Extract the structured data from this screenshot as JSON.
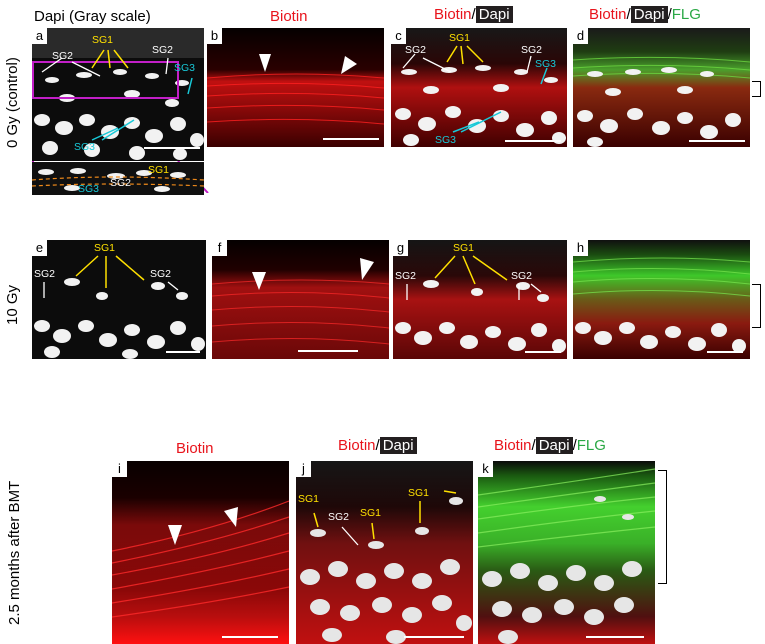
{
  "headers": {
    "dapi_gray": "Dapi (Gray scale)",
    "biotin": "Biotin",
    "slash": "/",
    "dapi": "Dapi",
    "flg": "FLG"
  },
  "rows": {
    "r1": "0 Gy (control)",
    "r2": "10 Gy",
    "r3": "2.5 months after BMT"
  },
  "panels": {
    "a": "a",
    "b": "b",
    "c": "c",
    "d": "d",
    "e": "e",
    "f": "f",
    "g": "g",
    "h": "h",
    "i": "i",
    "j": "j",
    "k": "k"
  },
  "labels": {
    "sg1": "SG1",
    "sg2": "SG2",
    "sg3": "SG3"
  },
  "colors": {
    "biotin_red": "#e8141c",
    "flg_green": "#2aa845",
    "sg1_yellow": "#ffe000",
    "sg3_cyan": "#18c9d8",
    "inset_border": "#c21fc7"
  }
}
